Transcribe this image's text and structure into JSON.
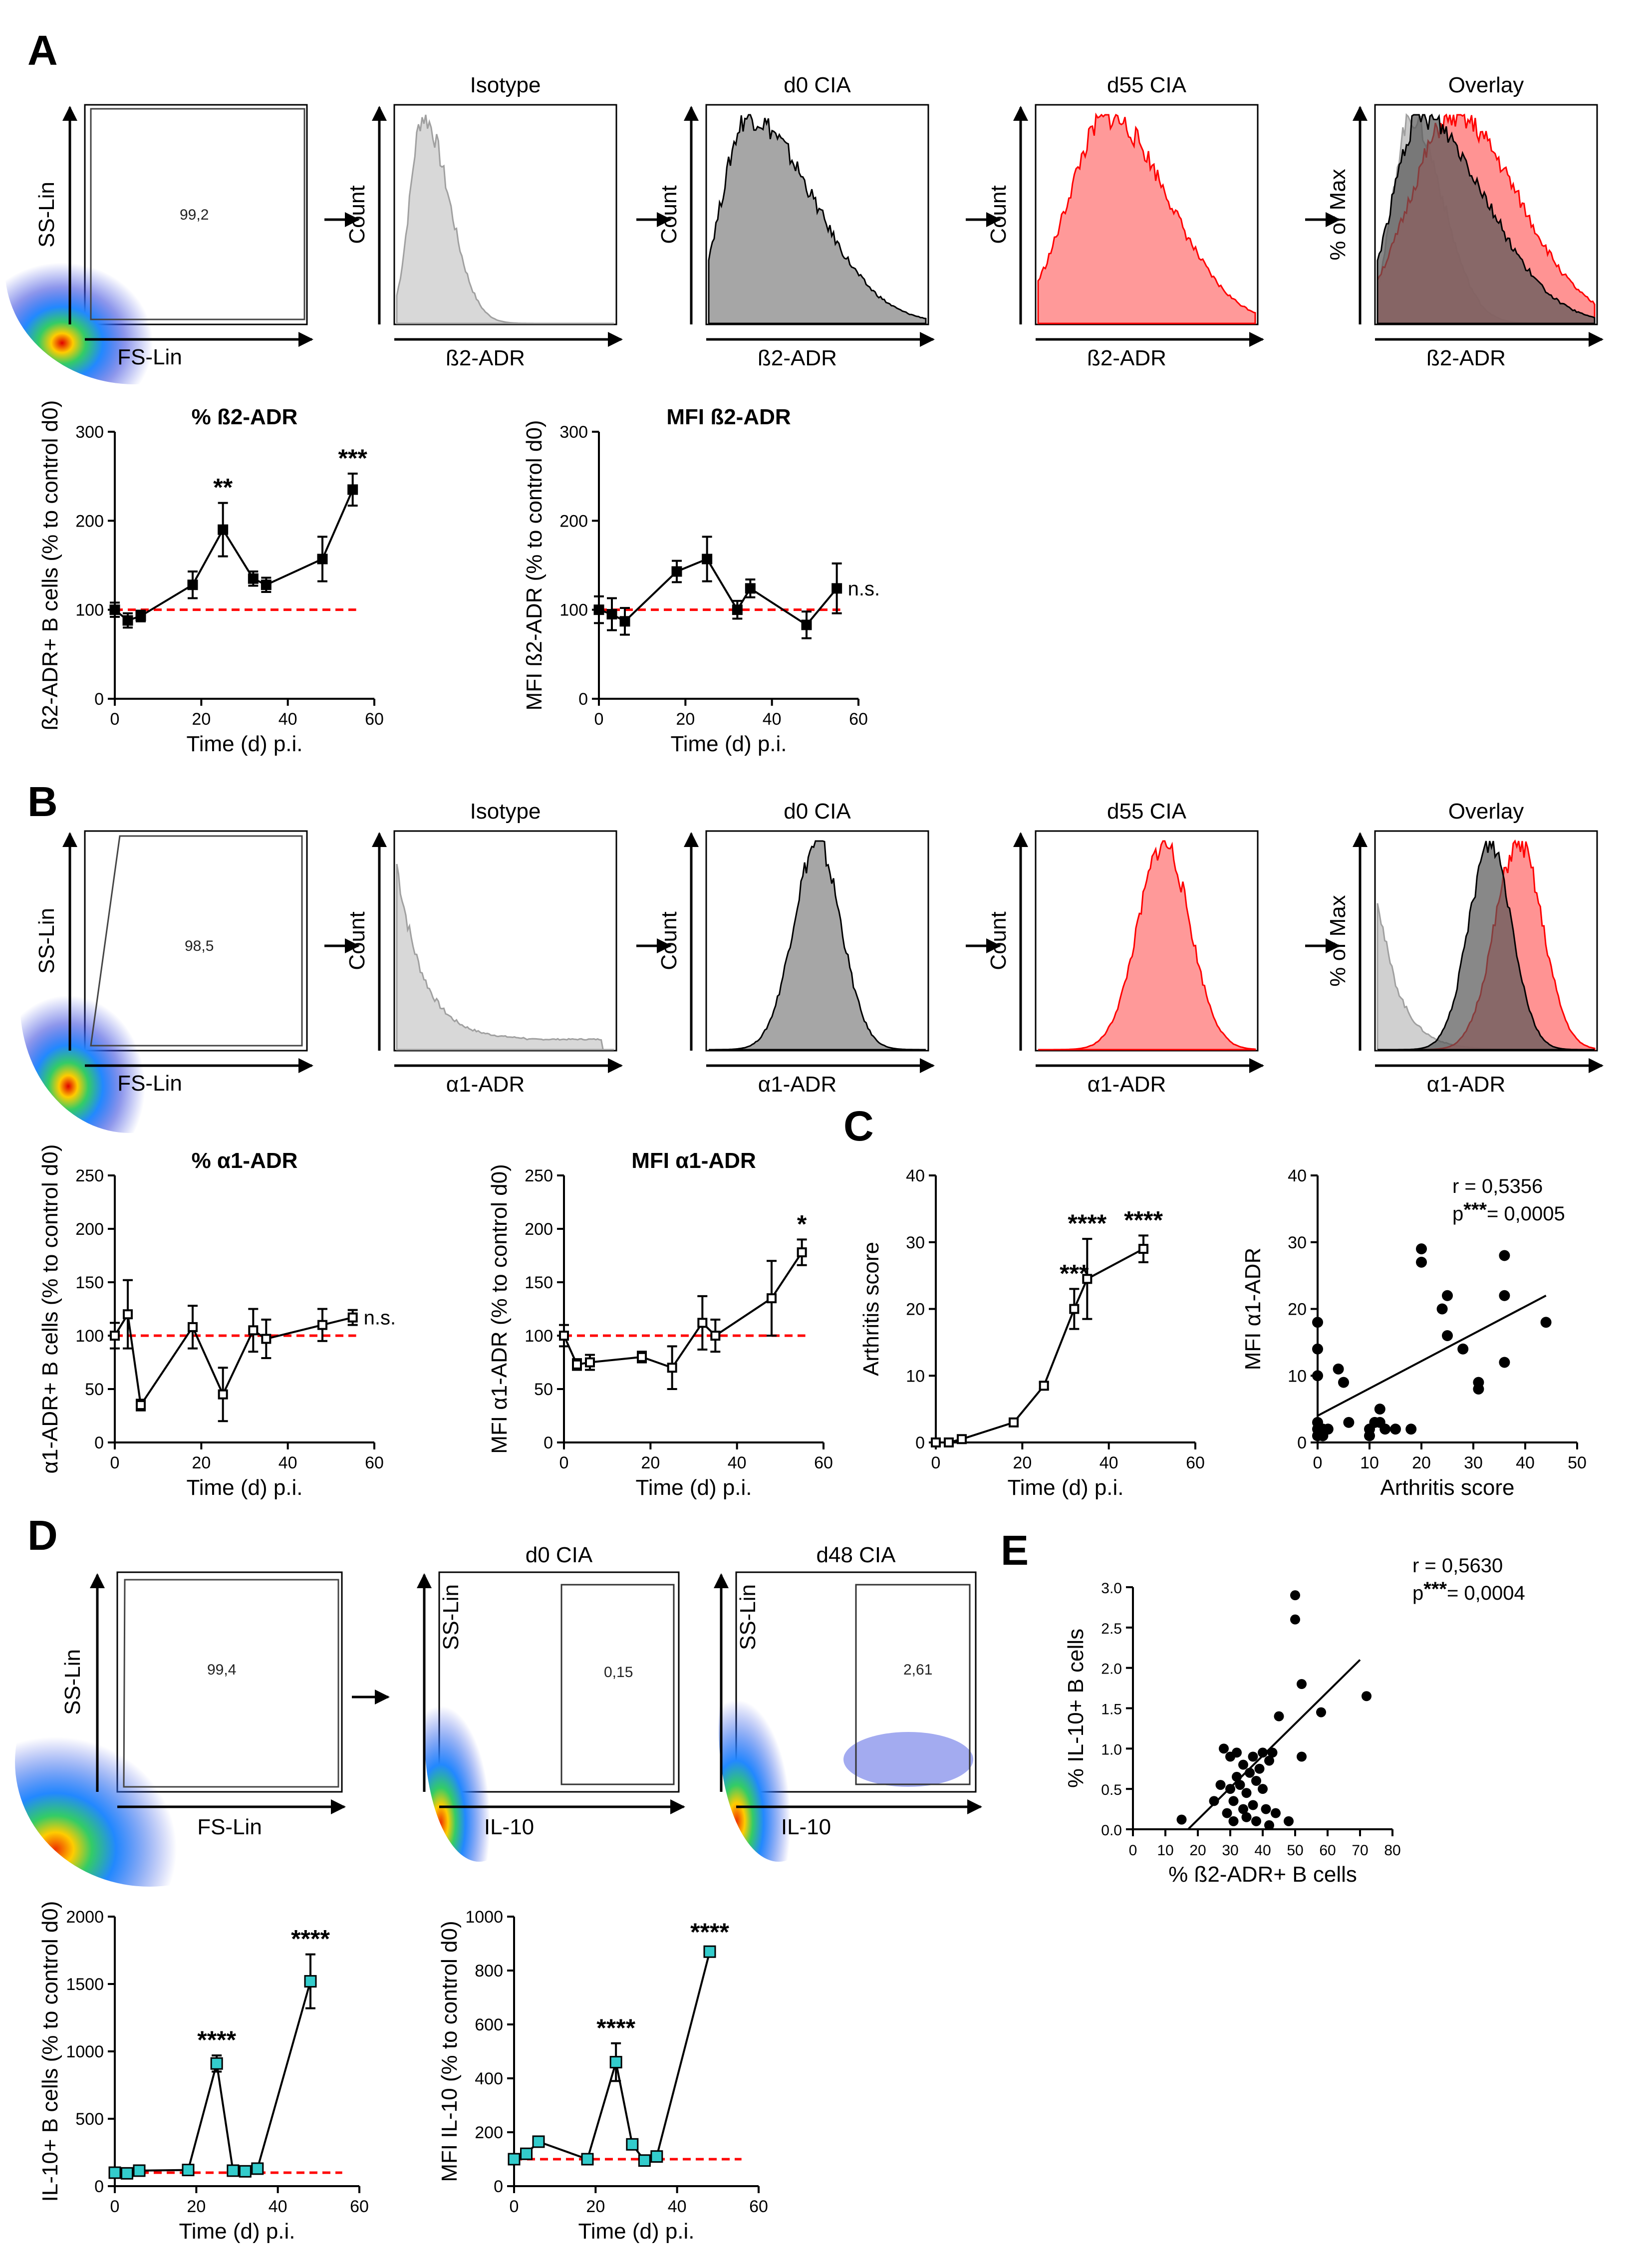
{
  "panel_labels": {
    "A": "A",
    "B": "B",
    "C": "C",
    "D": "D",
    "E": "E"
  },
  "flow_A": {
    "gate_value": "99,2",
    "gate_y": "SS-Lin",
    "gate_x": "FS-Lin",
    "hist_titles": [
      "Isotype",
      "d0 CIA",
      "d55 CIA",
      "Overlay"
    ],
    "hist_ylabels": [
      "Count",
      "Count",
      "Count",
      "% of Max"
    ],
    "hist_xlabel": "ß2-ADR"
  },
  "flow_B": {
    "gate_value": "98,5",
    "gate_y": "SS-Lin",
    "gate_x": "FS-Lin",
    "hist_titles": [
      "Isotype",
      "d0 CIA",
      "d55 CIA",
      "Overlay"
    ],
    "hist_ylabels": [
      "Count",
      "Count",
      "Count",
      "% of Max"
    ],
    "hist_xlabel": "α1-ADR"
  },
  "flow_D": {
    "gate1_value": "99,4",
    "gate_y": "SS-Lin",
    "gate_x": "FS-Lin",
    "d0_title": "d0 CIA",
    "d0_value": "0,15",
    "d48_title": "d48 CIA",
    "d48_value": "2,61",
    "il10_x": "IL-10",
    "il10_y": "SS-Lin"
  },
  "colors": {
    "red": "#ff0000",
    "dashed": "#ff0000",
    "cyan": "#33cccc",
    "grey": "#a0a0a0",
    "darkgrey": "#7f7f7f"
  },
  "chart_data": [
    {
      "id": "A1",
      "type": "line",
      "title": "% ß2-ADR",
      "xlabel": "Time (d) p.i.",
      "ylabel": "ß2-ADR+ B cells (% to control d0)",
      "xlim": [
        0,
        60
      ],
      "ylim": [
        0,
        300
      ],
      "xticks": [
        0,
        20,
        40,
        60
      ],
      "yticks": [
        0,
        100,
        200,
        300
      ],
      "marker": "filled-square",
      "reference": 100,
      "x": [
        0,
        3,
        6,
        18,
        25,
        32,
        35,
        48,
        55
      ],
      "y": [
        100,
        88,
        93,
        128,
        190,
        135,
        128,
        157,
        235
      ],
      "err": [
        8,
        8,
        6,
        15,
        30,
        8,
        8,
        25,
        18
      ],
      "annotations": [
        {
          "x": 25,
          "text": "**"
        },
        {
          "x": 55,
          "text": "***"
        }
      ]
    },
    {
      "id": "A2",
      "type": "line",
      "title": "MFI ß2-ADR",
      "xlabel": "Time (d) p.i.",
      "ylabel": "MFI ß2-ADR (% to control d0)",
      "xlim": [
        0,
        60
      ],
      "ylim": [
        0,
        300
      ],
      "xticks": [
        0,
        20,
        40,
        60
      ],
      "yticks": [
        0,
        100,
        200,
        300
      ],
      "marker": "filled-square",
      "reference": 100,
      "x": [
        0,
        3,
        6,
        18,
        25,
        32,
        35,
        48,
        55
      ],
      "y": [
        100,
        95,
        87,
        143,
        157,
        100,
        124,
        83,
        124
      ],
      "err": [
        15,
        18,
        15,
        12,
        25,
        10,
        10,
        15,
        28
      ],
      "end_label": "n.s."
    },
    {
      "id": "B1",
      "type": "line",
      "title": "% α1-ADR",
      "xlabel": "Time (d) p.i.",
      "ylabel": "α1-ADR+ B cells (% to control d0)",
      "xlim": [
        0,
        60
      ],
      "ylim": [
        0,
        250
      ],
      "xticks": [
        0,
        20,
        40,
        60
      ],
      "yticks": [
        0,
        50,
        100,
        150,
        200,
        250
      ],
      "marker": "open-square",
      "reference": 100,
      "x": [
        0,
        3,
        6,
        18,
        25,
        32,
        35,
        48,
        55
      ],
      "y": [
        100,
        120,
        35,
        108,
        45,
        105,
        97,
        110,
        117
      ],
      "err": [
        12,
        32,
        5,
        20,
        25,
        20,
        18,
        15,
        7
      ],
      "end_label": "n.s."
    },
    {
      "id": "B2",
      "type": "line",
      "title": "MFI α1-ADR",
      "xlabel": "Time (d) p.i.",
      "ylabel": "MFI α1-ADR (% to control d0)",
      "xlim": [
        0,
        60
      ],
      "ylim": [
        0,
        250
      ],
      "xticks": [
        0,
        20,
        40,
        60
      ],
      "yticks": [
        0,
        50,
        100,
        150,
        200,
        250
      ],
      "marker": "open-square",
      "reference": 100,
      "x": [
        0,
        3,
        6,
        18,
        25,
        32,
        35,
        48,
        55
      ],
      "y": [
        100,
        73,
        75,
        80,
        70,
        112,
        100,
        135,
        178
      ],
      "err": [
        10,
        5,
        7,
        5,
        20,
        25,
        15,
        35,
        12
      ],
      "annotations": [
        {
          "x": 55,
          "text": "*"
        }
      ]
    },
    {
      "id": "C1",
      "type": "line",
      "title": "",
      "xlabel": "Time (d) p.i.",
      "ylabel": "Arthritis score",
      "xlim": [
        0,
        60
      ],
      "ylim": [
        0,
        40
      ],
      "xticks": [
        0,
        20,
        40,
        60
      ],
      "yticks": [
        0,
        10,
        20,
        30,
        40
      ],
      "marker": "open-square",
      "x": [
        0,
        3,
        6,
        18,
        25,
        32,
        35,
        48
      ],
      "y": [
        0,
        0,
        0.5,
        3,
        8.5,
        20,
        24.5,
        29
      ],
      "err": [
        0,
        0,
        0.3,
        0.5,
        0.5,
        3,
        6,
        2
      ],
      "annotations": [
        {
          "x": 32,
          "text": "***"
        },
        {
          "x": 35,
          "text": "****"
        },
        {
          "x": 48,
          "text": "****"
        }
      ]
    },
    {
      "id": "C2",
      "type": "scatter",
      "title": "",
      "xlabel": "Arthritis score",
      "ylabel": "MFI α1-ADR",
      "xlim": [
        0,
        50
      ],
      "ylim": [
        0,
        40
      ],
      "xticks": [
        0,
        10,
        20,
        30,
        40,
        50
      ],
      "yticks": [
        0,
        10,
        20,
        30,
        40
      ],
      "points": [
        [
          0,
          18
        ],
        [
          0,
          14
        ],
        [
          0,
          10
        ],
        [
          0,
          3
        ],
        [
          0,
          2
        ],
        [
          0,
          1
        ],
        [
          1,
          2
        ],
        [
          1,
          1
        ],
        [
          2,
          2
        ],
        [
          4,
          11
        ],
        [
          5,
          9
        ],
        [
          6,
          3
        ],
        [
          10,
          2
        ],
        [
          10,
          1
        ],
        [
          11,
          3
        ],
        [
          12,
          5
        ],
        [
          12,
          3
        ],
        [
          13,
          2
        ],
        [
          15,
          2
        ],
        [
          18,
          2
        ],
        [
          20,
          29
        ],
        [
          20,
          27
        ],
        [
          24,
          20
        ],
        [
          25,
          22
        ],
        [
          25,
          16
        ],
        [
          28,
          14
        ],
        [
          31,
          9
        ],
        [
          31,
          8
        ],
        [
          36,
          28
        ],
        [
          36,
          22
        ],
        [
          36,
          12
        ],
        [
          44,
          18
        ]
      ],
      "fit": {
        "x1": 0,
        "y1": 4,
        "x2": 44,
        "y2": 22
      },
      "stats": {
        "r": "r = 0,5356",
        "p_prefix": "p",
        "p_stars": "***",
        "p_value": "= 0,0005"
      }
    },
    {
      "id": "D1",
      "type": "line",
      "title": "",
      "xlabel": "Time (d) p.i.",
      "ylabel": "IL-10+ B cells (% to control d0)",
      "xlim": [
        0,
        60
      ],
      "ylim": [
        0,
        2000
      ],
      "xticks": [
        0,
        20,
        40,
        60
      ],
      "yticks": [
        0,
        500,
        1000,
        1500,
        2000
      ],
      "marker": "cyan-square",
      "reference": 100,
      "x": [
        0,
        3,
        6,
        18,
        25,
        29,
        32,
        35,
        48
      ],
      "y": [
        100,
        95,
        115,
        120,
        910,
        115,
        110,
        130,
        1520
      ],
      "err": [
        0,
        0,
        0,
        0,
        60,
        0,
        0,
        0,
        200
      ],
      "annotations": [
        {
          "x": 25,
          "text": "****"
        },
        {
          "x": 48,
          "text": "****"
        }
      ]
    },
    {
      "id": "D2",
      "type": "line",
      "title": "",
      "xlabel": "Time (d) p.i.",
      "ylabel": "MFI IL-10 (% to control d0)",
      "xlim": [
        0,
        60
      ],
      "ylim": [
        0,
        1000
      ],
      "xticks": [
        0,
        20,
        40,
        60
      ],
      "yticks": [
        0,
        200,
        400,
        600,
        800,
        1000
      ],
      "marker": "cyan-square",
      "reference": 100,
      "x": [
        0,
        3,
        6,
        18,
        25,
        29,
        32,
        35,
        48
      ],
      "y": [
        100,
        120,
        165,
        100,
        460,
        155,
        95,
        110,
        870
      ],
      "err": [
        0,
        0,
        0,
        0,
        70,
        0,
        0,
        0,
        15
      ],
      "annotations": [
        {
          "x": 25,
          "text": "****"
        },
        {
          "x": 48,
          "text": "****"
        }
      ]
    },
    {
      "id": "E",
      "type": "scatter",
      "title": "",
      "xlabel": "% ß2-ADR+ B cells",
      "ylabel": "% IL-10+ B cells",
      "xlim": [
        0,
        80
      ],
      "ylim": [
        0,
        3.0
      ],
      "xticks": [
        0,
        10,
        20,
        30,
        40,
        50,
        60,
        70,
        80
      ],
      "yticks": [
        0.0,
        0.5,
        1.0,
        1.5,
        2.0,
        2.5,
        3.0
      ],
      "points": [
        [
          15,
          0.12
        ],
        [
          25,
          0.35
        ],
        [
          27,
          0.55
        ],
        [
          28,
          1.0
        ],
        [
          29,
          0.2
        ],
        [
          30,
          0.5
        ],
        [
          30,
          0.9
        ],
        [
          31,
          0.1
        ],
        [
          31,
          0.35
        ],
        [
          32,
          0.65
        ],
        [
          32,
          0.95
        ],
        [
          33,
          0.55
        ],
        [
          34,
          0.25
        ],
        [
          34,
          0.8
        ],
        [
          35,
          0.45
        ],
        [
          35,
          0.15
        ],
        [
          36,
          0.7
        ],
        [
          37,
          0.9
        ],
        [
          37,
          0.3
        ],
        [
          38,
          0.6
        ],
        [
          38,
          0.1
        ],
        [
          39,
          0.75
        ],
        [
          40,
          0.5
        ],
        [
          40,
          0.95
        ],
        [
          41,
          0.25
        ],
        [
          42,
          0.85
        ],
        [
          42,
          0.05
        ],
        [
          43,
          0.95
        ],
        [
          44,
          0.2
        ],
        [
          45,
          1.4
        ],
        [
          48,
          0.1
        ],
        [
          50,
          2.9
        ],
        [
          50,
          2.6
        ],
        [
          52,
          0.9
        ],
        [
          52,
          1.8
        ],
        [
          58,
          1.45
        ],
        [
          72,
          1.65
        ]
      ],
      "fit": {
        "x1": 17,
        "y1": 0.0,
        "x2": 70,
        "y2": 2.1
      },
      "stats": {
        "r": "r = 0,5630",
        "p_prefix": "p",
        "p_stars": "***",
        "p_value": "= 0,0004"
      }
    }
  ]
}
